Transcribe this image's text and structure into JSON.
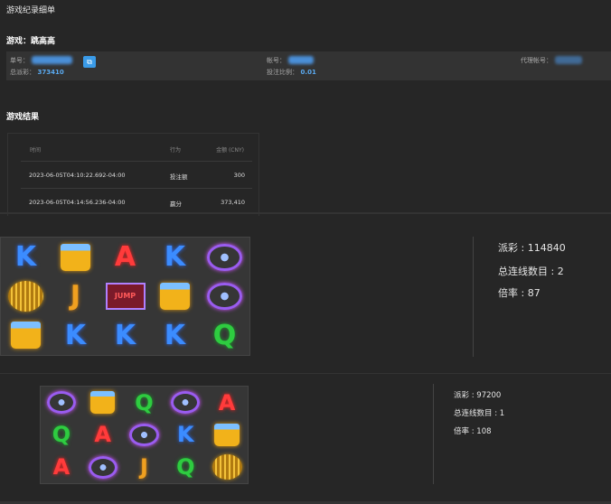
{
  "page_title": "游戏纪录细单",
  "game": {
    "label": "游戏：",
    "name": "跳高高"
  },
  "info": {
    "order_label": "单号：",
    "account_label": "帐号：",
    "agent_label": "代理帐号：",
    "total_payout_label": "总派彩：",
    "total_payout": "373410",
    "bet_ratio_label": "投注比例：",
    "bet_ratio": "0.01"
  },
  "results": {
    "title": "游戏结果",
    "headers": [
      "时间",
      "行为",
      "金额 (CNY)"
    ],
    "rows": [
      {
        "time": "2023-06-05T04:10:22.692-04:00",
        "action": "投注额",
        "amount": "300"
      },
      {
        "time": "2023-06-05T04:14:56.236-04:00",
        "action": "赢分",
        "amount": "373,410"
      }
    ]
  },
  "spins": [
    {
      "symbols": [
        "K",
        "beer",
        "A",
        "K",
        "headphones",
        "disco",
        "J",
        "jump",
        "beer",
        "headphones",
        "beer",
        "K",
        "K",
        "K",
        "Q"
      ],
      "payout_label": "派彩 : ",
      "payout": "114840",
      "lines_label": "总连线数目 : ",
      "lines": "2",
      "mult_label": "倍率 : ",
      "mult": "87"
    },
    {
      "symbols": [
        "headphones",
        "beer",
        "Q",
        "headphones",
        "A",
        "Q",
        "A",
        "headphones",
        "K",
        "beer",
        "A",
        "headphones",
        "J",
        "Q",
        "disco"
      ],
      "payout_label": "派彩 : ",
      "payout": "97200",
      "lines_label": "总连线数目 : ",
      "lines": "1",
      "mult_label": "倍率 : ",
      "mult": "108"
    }
  ]
}
